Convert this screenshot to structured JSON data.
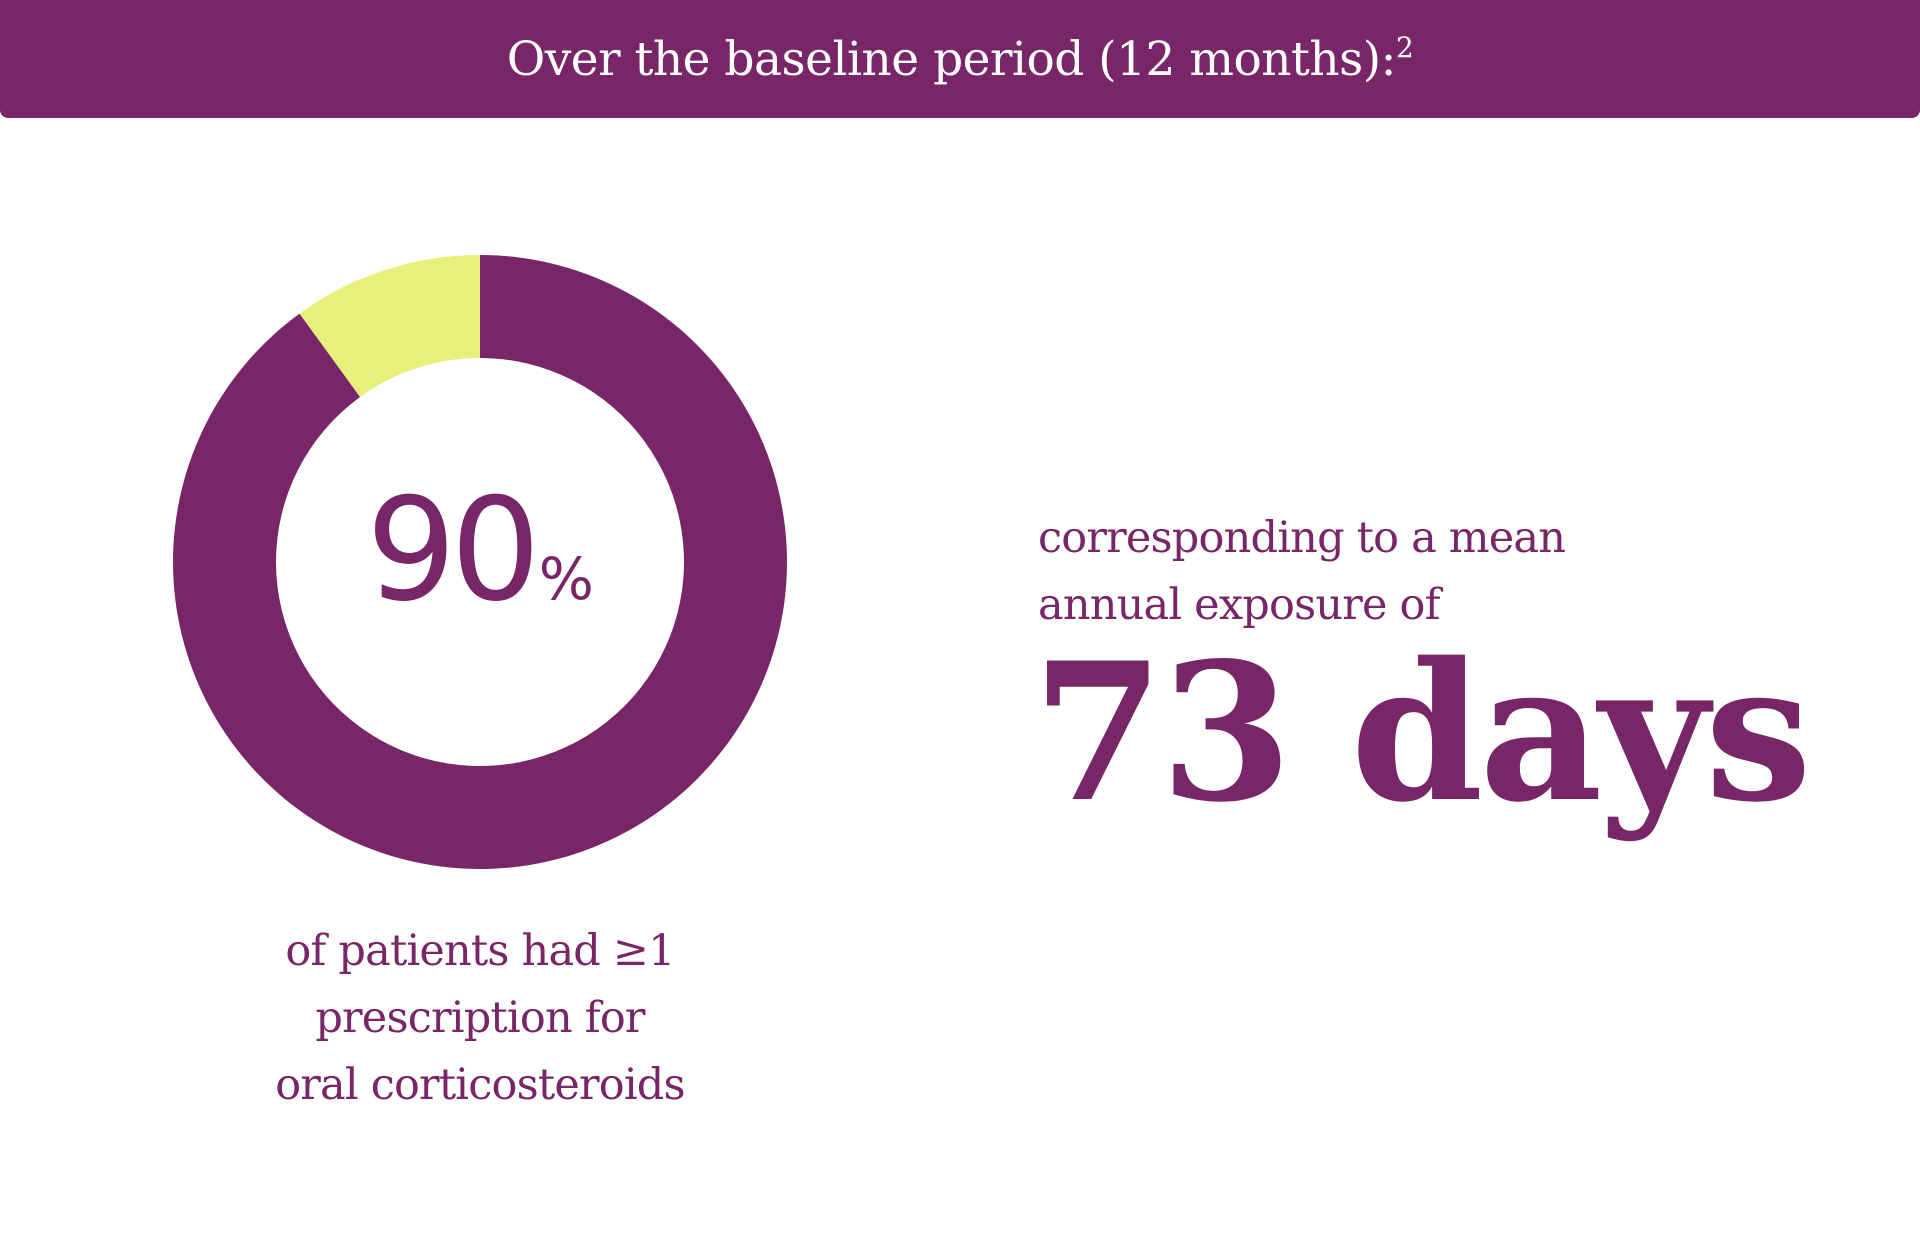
{
  "header": {
    "title": "Over the baseline period (12 months):",
    "footnote": "2"
  },
  "colors": {
    "primary": "#782667",
    "accent": "#E7F07B",
    "background": "#ffffff"
  },
  "chart_data": {
    "type": "pie",
    "title": "",
    "categories": [
      "",
      ""
    ],
    "values": [
      90,
      10
    ],
    "label_value": "90",
    "label_unit": "%"
  },
  "caption": {
    "lines": [
      "of patients had ≥1",
      "prescription for",
      "oral corticosteroids"
    ]
  },
  "stat": {
    "lines": [
      "corresponding to a mean",
      "annual exposure of"
    ],
    "value": "73 days"
  }
}
